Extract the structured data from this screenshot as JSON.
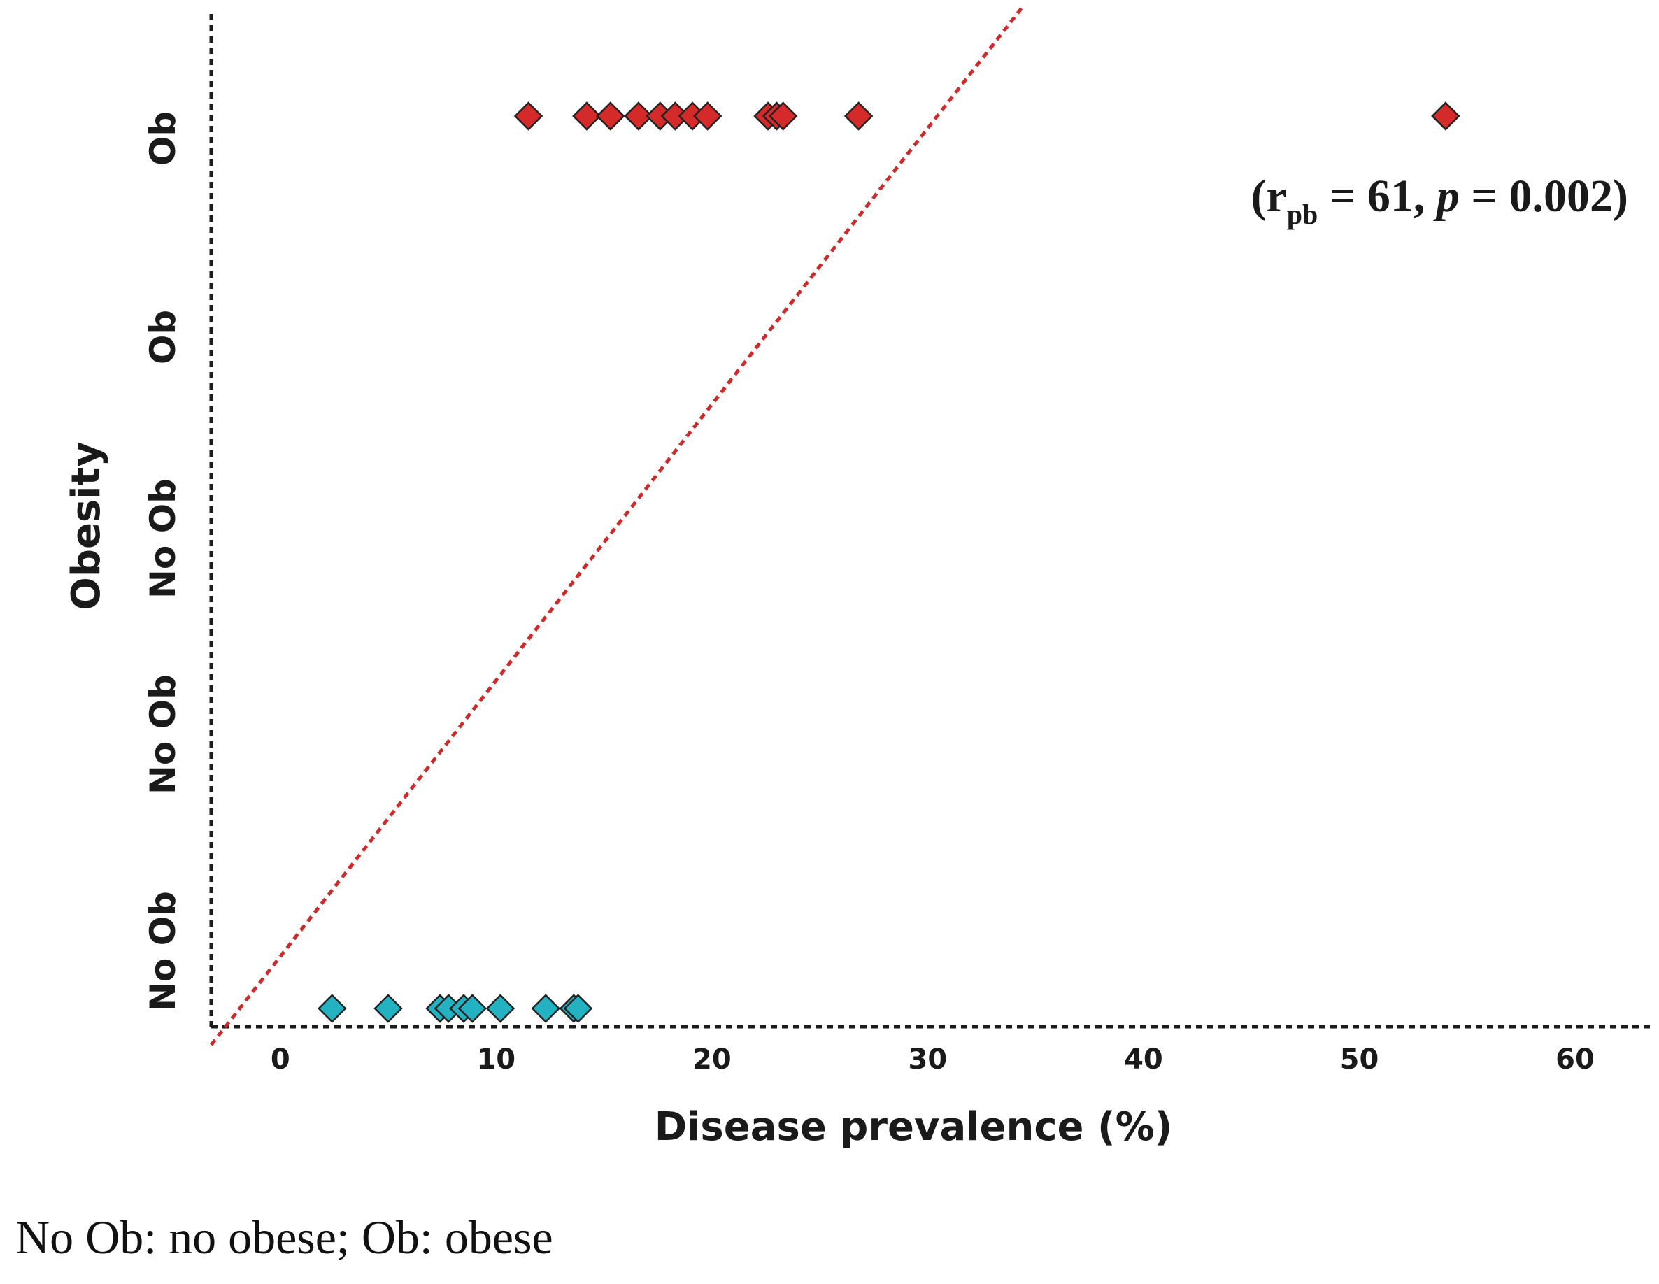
{
  "chart_data": {
    "type": "scatter",
    "xlabel": "Disease prevalence (%)",
    "ylabel": "Obesity",
    "x_ticks": [
      0,
      10,
      20,
      30,
      40,
      50,
      60
    ],
    "xlim": [
      -3.2,
      63.5
    ],
    "y_tick_labels": [
      "No Ob",
      "No Ob",
      "No Ob",
      "Ob",
      "Ob"
    ],
    "series": [
      {
        "name": "Ob",
        "color": "#d42a2a",
        "y": 1,
        "x": [
          11.5,
          14.2,
          15.3,
          16.6,
          17.6,
          18.3,
          19.1,
          19.8,
          22.6,
          23.0,
          23.3,
          26.8,
          54.0
        ]
      },
      {
        "name": "No Ob",
        "color": "#22b2c2",
        "y": 0,
        "x": [
          2.4,
          5.0,
          7.4,
          7.8,
          8.5,
          8.9,
          10.2,
          12.3,
          13.6,
          13.8
        ]
      }
    ],
    "trend_line": {
      "color": "#cc2b2b",
      "x": [
        -3.2,
        34.4
      ],
      "y": [
        -0.02,
        1.12
      ]
    },
    "annotation": {
      "r_symbol": "r",
      "r_subscript": "pb",
      "r_text": " = 61, ",
      "p_symbol": "p",
      "p_text": " = 0.002)",
      "open": "("
    }
  },
  "caption": "No Ob: no obese; Ob: obese"
}
